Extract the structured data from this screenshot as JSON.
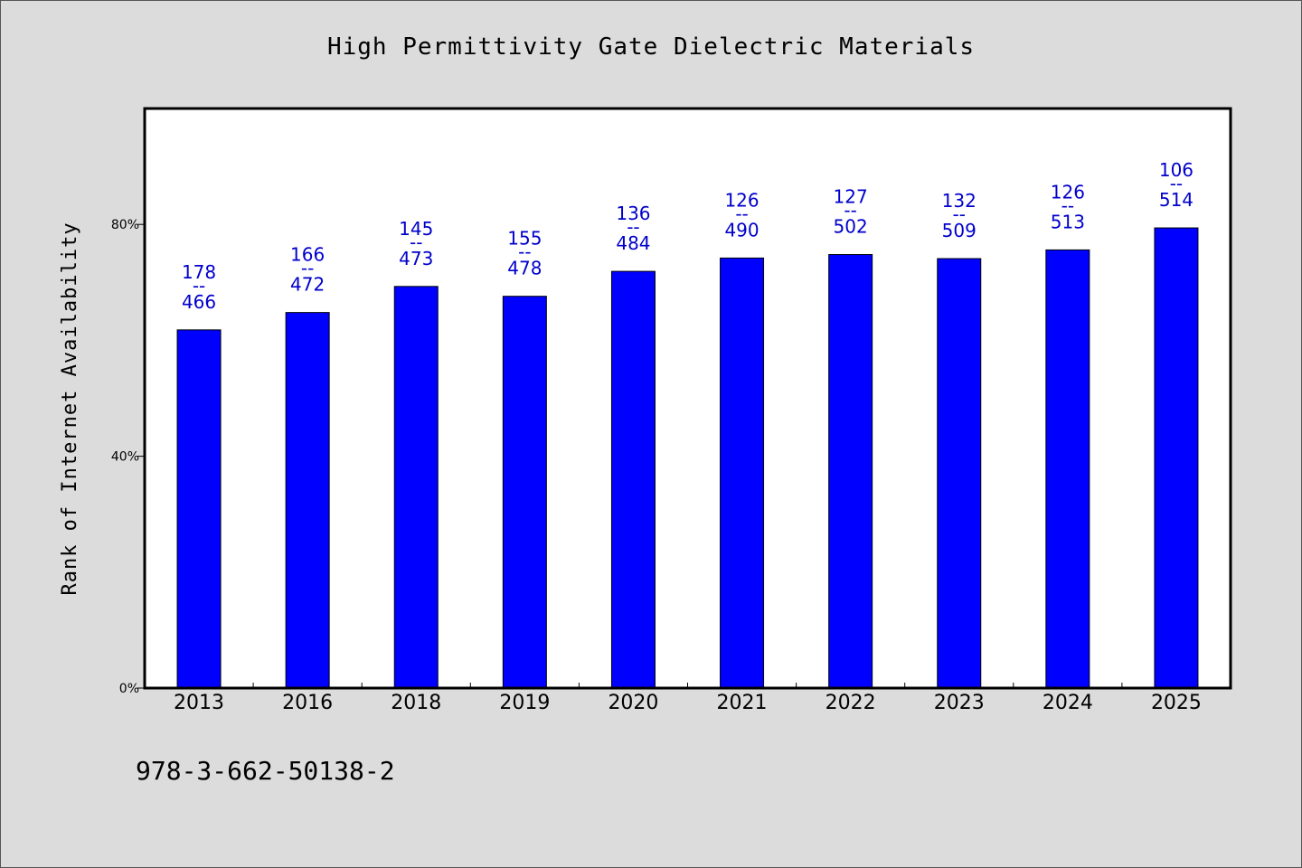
{
  "colors": {
    "bar": "#0000ff",
    "bar_outline": "#000000",
    "label": "#0000cc",
    "plot_bg": "#ffffff",
    "page_bg": "#dcdcdc"
  },
  "footnote": "978-3-662-50138-2",
  "chart_data": {
    "type": "bar",
    "title": "High Permittivity Gate Dielectric Materials",
    "ylabel": "Rank of Internet Availability",
    "xlabel": "",
    "ylim": [
      0,
      100
    ],
    "yticks": [
      0,
      40,
      80
    ],
    "ytick_labels": [
      "0%",
      "40%",
      "80%"
    ],
    "grid": false,
    "categories": [
      "2013",
      "2016",
      "2018",
      "2019",
      "2020",
      "2021",
      "2022",
      "2023",
      "2024",
      "2025"
    ],
    "values": [
      61.8,
      64.8,
      69.3,
      67.6,
      71.9,
      74.2,
      74.8,
      74.1,
      75.6,
      79.4
    ],
    "label_top": [
      "178",
      "166",
      "145",
      "155",
      "136",
      "126",
      "127",
      "132",
      "126",
      "106"
    ],
    "label_sep": "--",
    "label_bottom": [
      "466",
      "472",
      "473",
      "478",
      "484",
      "490",
      "502",
      "509",
      "513",
      "514"
    ]
  }
}
